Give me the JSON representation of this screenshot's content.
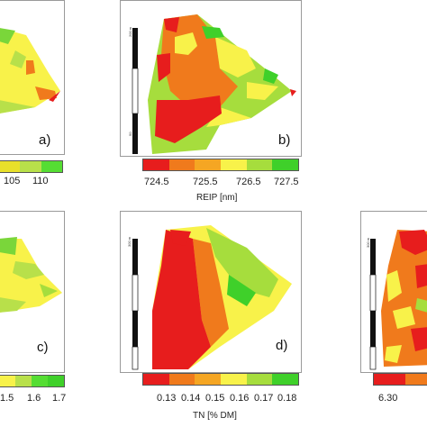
{
  "panels": [
    {
      "id": "a",
      "label": "a)",
      "axis_title": "",
      "tick_labels": [
        "105",
        "110"
      ],
      "colorbar": [
        "#e8e02a",
        "#b8e04a",
        "#55dd33"
      ]
    },
    {
      "id": "b",
      "label": "b)",
      "axis_title": "REIP [nm]",
      "tick_labels": [
        "724.5",
        "725.5",
        "726.5",
        "727.5"
      ],
      "colorbar": [
        "#e71d1d",
        "#f07a1c",
        "#f5a623",
        "#f8f24a",
        "#a6dd3d",
        "#3fd02a"
      ],
      "scale_ticks": [
        "200 m",
        "150",
        "100",
        "50",
        "0"
      ]
    },
    {
      "id": "c",
      "label": "c)",
      "axis_title": "",
      "tick_labels": "1.5|1.6|1.7",
      "colorbar": [
        "#f8f24a",
        "#b8e04a",
        "#55dd33",
        "#3fd02a"
      ]
    },
    {
      "id": "d",
      "label": "d)",
      "axis_title": "TN [% DM]",
      "tick_labels": [
        "0.13",
        "0.14",
        "0.15",
        "0.16",
        "0.17",
        "0.18"
      ],
      "colorbar": [
        "#e71d1d",
        "#f07a1c",
        "#f5a623",
        "#f8f24a",
        "#a6dd3d",
        "#3fd02a"
      ],
      "scale_ticks": [
        "300 m",
        "200",
        "100",
        "0"
      ]
    },
    {
      "id": "e",
      "label": "",
      "axis_title": "",
      "tick_labels": [
        "6.30"
      ],
      "colorbar": [
        "#e71d1d",
        "#f07a1c"
      ],
      "scale_ticks": [
        "300 m",
        "200",
        "100",
        "0"
      ]
    }
  ],
  "legend_colors": {
    "red": "#e71d1d",
    "orange": "#f07a1c",
    "yellow": "#f8f24a",
    "lightgreen": "#a6dd3d",
    "green": "#3fd02a"
  }
}
